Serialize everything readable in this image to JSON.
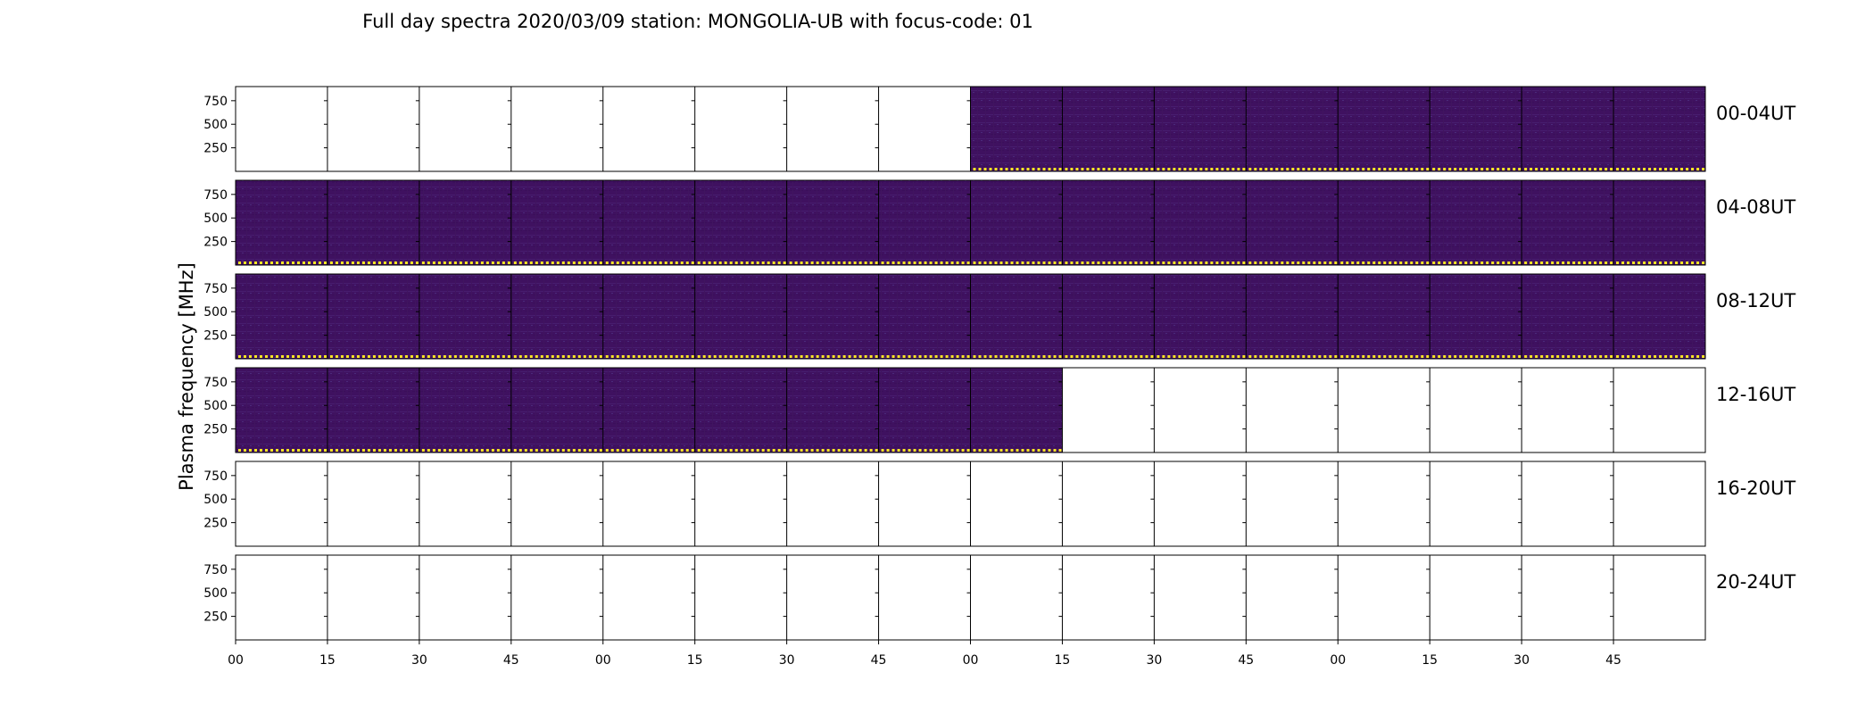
{
  "chart_data": {
    "type": "heatmap",
    "title": "Full day spectra 2020/03/09 station: MONGOLIA-UB with focus-code: 01",
    "ylabel": "Plasma frequency [MHz]",
    "xlabel": "",
    "y_ticks": [
      "750",
      "500",
      "250"
    ],
    "x_ticks": [
      "00",
      "15",
      "30",
      "45",
      "00",
      "15",
      "30",
      "45",
      "00",
      "15",
      "30",
      "45",
      "00",
      "15",
      "30",
      "45"
    ],
    "grid": false,
    "colormap": "viridis",
    "marker_color": "#fde725",
    "rows": [
      {
        "label": "00-04UT",
        "has_data": [
          false,
          false,
          false,
          false,
          false,
          false,
          false,
          false,
          true,
          true,
          true,
          true,
          true,
          true,
          true,
          true
        ]
      },
      {
        "label": "04-08UT",
        "has_data": [
          true,
          true,
          true,
          true,
          true,
          true,
          true,
          true,
          true,
          true,
          true,
          true,
          true,
          true,
          true,
          true
        ]
      },
      {
        "label": "08-12UT",
        "has_data": [
          true,
          true,
          true,
          true,
          true,
          true,
          true,
          true,
          true,
          true,
          true,
          true,
          true,
          true,
          true,
          true
        ]
      },
      {
        "label": "12-16UT",
        "has_data": [
          true,
          true,
          true,
          true,
          true,
          true,
          true,
          true,
          true,
          false,
          false,
          false,
          false,
          false,
          false,
          false
        ]
      },
      {
        "label": "16-20UT",
        "has_data": [
          false,
          false,
          false,
          false,
          false,
          false,
          false,
          false,
          false,
          false,
          false,
          false,
          false,
          false,
          false,
          false
        ]
      },
      {
        "label": "20-24UT",
        "has_data": [
          false,
          false,
          false,
          false,
          false,
          false,
          false,
          false,
          false,
          false,
          false,
          false,
          false,
          false,
          false,
          false
        ]
      }
    ]
  }
}
